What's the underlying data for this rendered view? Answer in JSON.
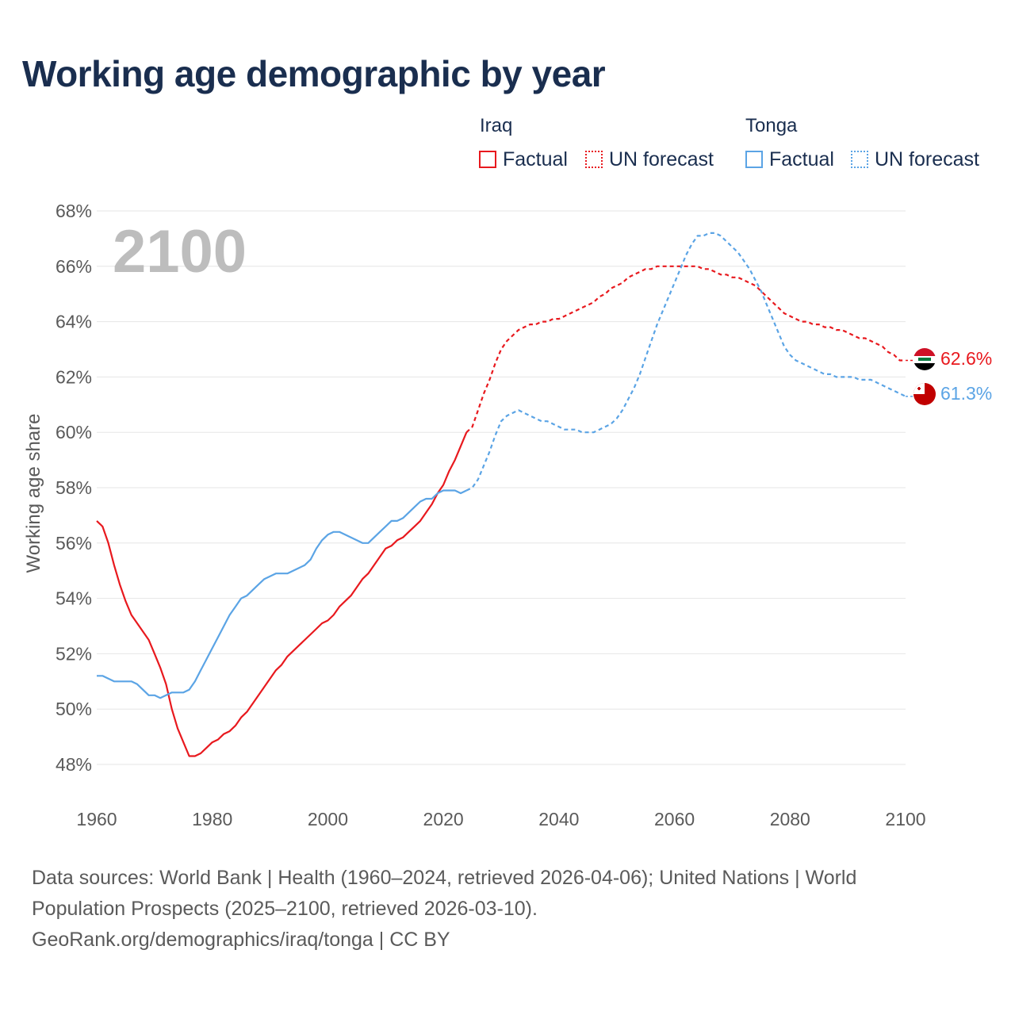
{
  "title": "Working age demographic by year",
  "year_badge": "2100",
  "legend": {
    "groups": [
      {
        "name": "Iraq",
        "factual_label": "Factual",
        "forecast_label": "UN forecast",
        "color": "#e8191e"
      },
      {
        "name": "Tonga",
        "factual_label": "Factual",
        "forecast_label": "UN forecast",
        "color": "#5ba4e5"
      }
    ]
  },
  "footer": {
    "line1": "Data sources: World Bank | Health (1960–2024, retrieved 2026-04-06); United Nations | World",
    "line2": "Population Prospects (2025–2100, retrieved 2026-03-10).",
    "line3": "GeoRank.org/demographics/iraq/tonga | CC BY"
  },
  "chart_data": {
    "type": "line",
    "title": "Working age demographic by year",
    "xlabel": "",
    "ylabel": "Working age share",
    "xlim": [
      1960,
      2100
    ],
    "ylim": [
      48,
      68
    ],
    "x_ticks": [
      1960,
      1980,
      2000,
      2020,
      2040,
      2060,
      2080,
      2100
    ],
    "x_tick_labels": [
      "1960",
      "1980",
      "2000",
      "2020",
      "2040",
      "2060",
      "2080",
      "2100"
    ],
    "y_ticks": [
      48,
      50,
      52,
      54,
      56,
      58,
      60,
      62,
      64,
      66,
      68
    ],
    "y_tick_labels": [
      "48%",
      "50%",
      "52%",
      "54%",
      "56%",
      "58%",
      "60%",
      "62%",
      "64%",
      "66%",
      "68%"
    ],
    "grid": true,
    "forecast_start": 2025,
    "series": [
      {
        "name": "Iraq",
        "color": "#e8191e",
        "end_label": "62.6%",
        "points": [
          [
            1960,
            56.8
          ],
          [
            1961,
            56.6
          ],
          [
            1962,
            56.0
          ],
          [
            1963,
            55.2
          ],
          [
            1964,
            54.5
          ],
          [
            1965,
            53.9
          ],
          [
            1966,
            53.4
          ],
          [
            1967,
            53.1
          ],
          [
            1968,
            52.8
          ],
          [
            1969,
            52.5
          ],
          [
            1970,
            52.0
          ],
          [
            1971,
            51.5
          ],
          [
            1972,
            50.9
          ],
          [
            1973,
            50.0
          ],
          [
            1974,
            49.3
          ],
          [
            1975,
            48.8
          ],
          [
            1976,
            48.3
          ],
          [
            1977,
            48.3
          ],
          [
            1978,
            48.4
          ],
          [
            1979,
            48.6
          ],
          [
            1980,
            48.8
          ],
          [
            1981,
            48.9
          ],
          [
            1982,
            49.1
          ],
          [
            1983,
            49.2
          ],
          [
            1984,
            49.4
          ],
          [
            1985,
            49.7
          ],
          [
            1986,
            49.9
          ],
          [
            1987,
            50.2
          ],
          [
            1988,
            50.5
          ],
          [
            1989,
            50.8
          ],
          [
            1990,
            51.1
          ],
          [
            1991,
            51.4
          ],
          [
            1992,
            51.6
          ],
          [
            1993,
            51.9
          ],
          [
            1994,
            52.1
          ],
          [
            1995,
            52.3
          ],
          [
            1996,
            52.5
          ],
          [
            1997,
            52.7
          ],
          [
            1998,
            52.9
          ],
          [
            1999,
            53.1
          ],
          [
            2000,
            53.2
          ],
          [
            2001,
            53.4
          ],
          [
            2002,
            53.7
          ],
          [
            2003,
            53.9
          ],
          [
            2004,
            54.1
          ],
          [
            2005,
            54.4
          ],
          [
            2006,
            54.7
          ],
          [
            2007,
            54.9
          ],
          [
            2008,
            55.2
          ],
          [
            2009,
            55.5
          ],
          [
            2010,
            55.8
          ],
          [
            2011,
            55.9
          ],
          [
            2012,
            56.1
          ],
          [
            2013,
            56.2
          ],
          [
            2014,
            56.4
          ],
          [
            2015,
            56.6
          ],
          [
            2016,
            56.8
          ],
          [
            2017,
            57.1
          ],
          [
            2018,
            57.4
          ],
          [
            2019,
            57.8
          ],
          [
            2020,
            58.1
          ],
          [
            2021,
            58.6
          ],
          [
            2022,
            59.0
          ],
          [
            2023,
            59.5
          ],
          [
            2024,
            60.0
          ],
          [
            2025,
            60.2
          ],
          [
            2026,
            60.8
          ],
          [
            2027,
            61.4
          ],
          [
            2028,
            61.9
          ],
          [
            2029,
            62.5
          ],
          [
            2030,
            63.0
          ],
          [
            2031,
            63.3
          ],
          [
            2032,
            63.5
          ],
          [
            2033,
            63.7
          ],
          [
            2034,
            63.8
          ],
          [
            2035,
            63.9
          ],
          [
            2036,
            63.9
          ],
          [
            2037,
            64.0
          ],
          [
            2038,
            64.0
          ],
          [
            2039,
            64.1
          ],
          [
            2040,
            64.1
          ],
          [
            2041,
            64.2
          ],
          [
            2042,
            64.3
          ],
          [
            2043,
            64.4
          ],
          [
            2044,
            64.5
          ],
          [
            2045,
            64.6
          ],
          [
            2046,
            64.7
          ],
          [
            2047,
            64.9
          ],
          [
            2048,
            65.0
          ],
          [
            2049,
            65.2
          ],
          [
            2050,
            65.3
          ],
          [
            2051,
            65.4
          ],
          [
            2052,
            65.6
          ],
          [
            2053,
            65.7
          ],
          [
            2054,
            65.8
          ],
          [
            2055,
            65.9
          ],
          [
            2056,
            65.9
          ],
          [
            2057,
            66.0
          ],
          [
            2058,
            66.0
          ],
          [
            2059,
            66.0
          ],
          [
            2060,
            66.0
          ],
          [
            2061,
            66.0
          ],
          [
            2062,
            66.0
          ],
          [
            2063,
            66.0
          ],
          [
            2064,
            66.0
          ],
          [
            2065,
            65.9
          ],
          [
            2066,
            65.9
          ],
          [
            2067,
            65.8
          ],
          [
            2068,
            65.7
          ],
          [
            2069,
            65.7
          ],
          [
            2070,
            65.6
          ],
          [
            2071,
            65.6
          ],
          [
            2072,
            65.5
          ],
          [
            2073,
            65.4
          ],
          [
            2074,
            65.3
          ],
          [
            2075,
            65.1
          ],
          [
            2076,
            64.9
          ],
          [
            2077,
            64.7
          ],
          [
            2078,
            64.5
          ],
          [
            2079,
            64.3
          ],
          [
            2080,
            64.2
          ],
          [
            2081,
            64.1
          ],
          [
            2082,
            64.0
          ],
          [
            2083,
            64.0
          ],
          [
            2084,
            63.9
          ],
          [
            2085,
            63.9
          ],
          [
            2086,
            63.8
          ],
          [
            2087,
            63.8
          ],
          [
            2088,
            63.7
          ],
          [
            2089,
            63.7
          ],
          [
            2090,
            63.6
          ],
          [
            2091,
            63.5
          ],
          [
            2092,
            63.4
          ],
          [
            2093,
            63.4
          ],
          [
            2094,
            63.3
          ],
          [
            2095,
            63.2
          ],
          [
            2096,
            63.1
          ],
          [
            2097,
            62.9
          ],
          [
            2098,
            62.8
          ],
          [
            2099,
            62.6
          ],
          [
            2100,
            62.6
          ]
        ]
      },
      {
        "name": "Tonga",
        "color": "#5ba4e5",
        "end_label": "61.3%",
        "points": [
          [
            1960,
            51.2
          ],
          [
            1961,
            51.2
          ],
          [
            1962,
            51.1
          ],
          [
            1963,
            51.0
          ],
          [
            1964,
            51.0
          ],
          [
            1965,
            51.0
          ],
          [
            1966,
            51.0
          ],
          [
            1967,
            50.9
          ],
          [
            1968,
            50.7
          ],
          [
            1969,
            50.5
          ],
          [
            1970,
            50.5
          ],
          [
            1971,
            50.4
          ],
          [
            1972,
            50.5
          ],
          [
            1973,
            50.6
          ],
          [
            1974,
            50.6
          ],
          [
            1975,
            50.6
          ],
          [
            1976,
            50.7
          ],
          [
            1977,
            51.0
          ],
          [
            1978,
            51.4
          ],
          [
            1979,
            51.8
          ],
          [
            1980,
            52.2
          ],
          [
            1981,
            52.6
          ],
          [
            1982,
            53.0
          ],
          [
            1983,
            53.4
          ],
          [
            1984,
            53.7
          ],
          [
            1985,
            54.0
          ],
          [
            1986,
            54.1
          ],
          [
            1987,
            54.3
          ],
          [
            1988,
            54.5
          ],
          [
            1989,
            54.7
          ],
          [
            1990,
            54.8
          ],
          [
            1991,
            54.9
          ],
          [
            1992,
            54.9
          ],
          [
            1993,
            54.9
          ],
          [
            1994,
            55.0
          ],
          [
            1995,
            55.1
          ],
          [
            1996,
            55.2
          ],
          [
            1997,
            55.4
          ],
          [
            1998,
            55.8
          ],
          [
            1999,
            56.1
          ],
          [
            2000,
            56.3
          ],
          [
            2001,
            56.4
          ],
          [
            2002,
            56.4
          ],
          [
            2003,
            56.3
          ],
          [
            2004,
            56.2
          ],
          [
            2005,
            56.1
          ],
          [
            2006,
            56.0
          ],
          [
            2007,
            56.0
          ],
          [
            2008,
            56.2
          ],
          [
            2009,
            56.4
          ],
          [
            2010,
            56.6
          ],
          [
            2011,
            56.8
          ],
          [
            2012,
            56.8
          ],
          [
            2013,
            56.9
          ],
          [
            2014,
            57.1
          ],
          [
            2015,
            57.3
          ],
          [
            2016,
            57.5
          ],
          [
            2017,
            57.6
          ],
          [
            2018,
            57.6
          ],
          [
            2019,
            57.8
          ],
          [
            2020,
            57.9
          ],
          [
            2021,
            57.9
          ],
          [
            2022,
            57.9
          ],
          [
            2023,
            57.8
          ],
          [
            2024,
            57.9
          ],
          [
            2025,
            58.0
          ],
          [
            2026,
            58.3
          ],
          [
            2027,
            58.8
          ],
          [
            2028,
            59.3
          ],
          [
            2029,
            59.9
          ],
          [
            2030,
            60.4
          ],
          [
            2031,
            60.6
          ],
          [
            2032,
            60.7
          ],
          [
            2033,
            60.8
          ],
          [
            2034,
            60.7
          ],
          [
            2035,
            60.6
          ],
          [
            2036,
            60.5
          ],
          [
            2037,
            60.4
          ],
          [
            2038,
            60.4
          ],
          [
            2039,
            60.3
          ],
          [
            2040,
            60.2
          ],
          [
            2041,
            60.1
          ],
          [
            2042,
            60.1
          ],
          [
            2043,
            60.1
          ],
          [
            2044,
            60.0
          ],
          [
            2045,
            60.0
          ],
          [
            2046,
            60.0
          ],
          [
            2047,
            60.1
          ],
          [
            2048,
            60.2
          ],
          [
            2049,
            60.3
          ],
          [
            2050,
            60.5
          ],
          [
            2051,
            60.8
          ],
          [
            2052,
            61.2
          ],
          [
            2053,
            61.6
          ],
          [
            2054,
            62.1
          ],
          [
            2055,
            62.7
          ],
          [
            2056,
            63.3
          ],
          [
            2057,
            63.9
          ],
          [
            2058,
            64.4
          ],
          [
            2059,
            64.9
          ],
          [
            2060,
            65.4
          ],
          [
            2061,
            65.9
          ],
          [
            2062,
            66.4
          ],
          [
            2063,
            66.8
          ],
          [
            2064,
            67.1
          ],
          [
            2065,
            67.1
          ],
          [
            2066,
            67.2
          ],
          [
            2067,
            67.2
          ],
          [
            2068,
            67.1
          ],
          [
            2069,
            66.9
          ],
          [
            2070,
            66.7
          ],
          [
            2071,
            66.5
          ],
          [
            2072,
            66.2
          ],
          [
            2073,
            65.9
          ],
          [
            2074,
            65.5
          ],
          [
            2075,
            65.1
          ],
          [
            2076,
            64.6
          ],
          [
            2077,
            64.1
          ],
          [
            2078,
            63.6
          ],
          [
            2079,
            63.1
          ],
          [
            2080,
            62.8
          ],
          [
            2081,
            62.6
          ],
          [
            2082,
            62.5
          ],
          [
            2083,
            62.4
          ],
          [
            2084,
            62.3
          ],
          [
            2085,
            62.2
          ],
          [
            2086,
            62.1
          ],
          [
            2087,
            62.1
          ],
          [
            2088,
            62.0
          ],
          [
            2089,
            62.0
          ],
          [
            2090,
            62.0
          ],
          [
            2091,
            62.0
          ],
          [
            2092,
            61.9
          ],
          [
            2093,
            61.9
          ],
          [
            2094,
            61.9
          ],
          [
            2095,
            61.8
          ],
          [
            2096,
            61.7
          ],
          [
            2097,
            61.6
          ],
          [
            2098,
            61.5
          ],
          [
            2099,
            61.4
          ],
          [
            2100,
            61.3
          ]
        ]
      }
    ]
  }
}
